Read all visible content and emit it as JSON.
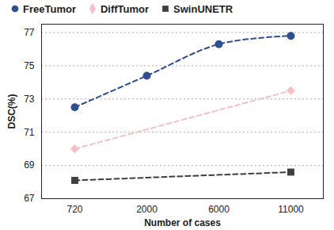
{
  "chart_data": {
    "type": "line",
    "categories": [
      "720",
      "2000",
      "6000",
      "11000"
    ],
    "x_label": "Number of cases",
    "y_label": "DSC(%)",
    "series": [
      {
        "name": "FreeTumor",
        "color": "#2e4f93",
        "marker": "circle",
        "line_style": "dashed",
        "values": [
          72.5,
          74.4,
          76.3,
          76.8
        ]
      },
      {
        "name": "DiffTumor",
        "color": "#f5c0c8",
        "marker": "diamond",
        "line_style": "dashed",
        "values": [
          70.0,
          null,
          null,
          73.5
        ]
      },
      {
        "name": "SwinUNETR",
        "color": "#3f3f3f",
        "marker": "square",
        "line_style": "dashed",
        "values": [
          68.1,
          null,
          null,
          68.6
        ]
      }
    ],
    "ylim": [
      67,
      77.5
    ],
    "yticks": [
      67,
      69,
      71,
      73,
      75,
      77
    ],
    "grid": true,
    "legend": "top"
  }
}
